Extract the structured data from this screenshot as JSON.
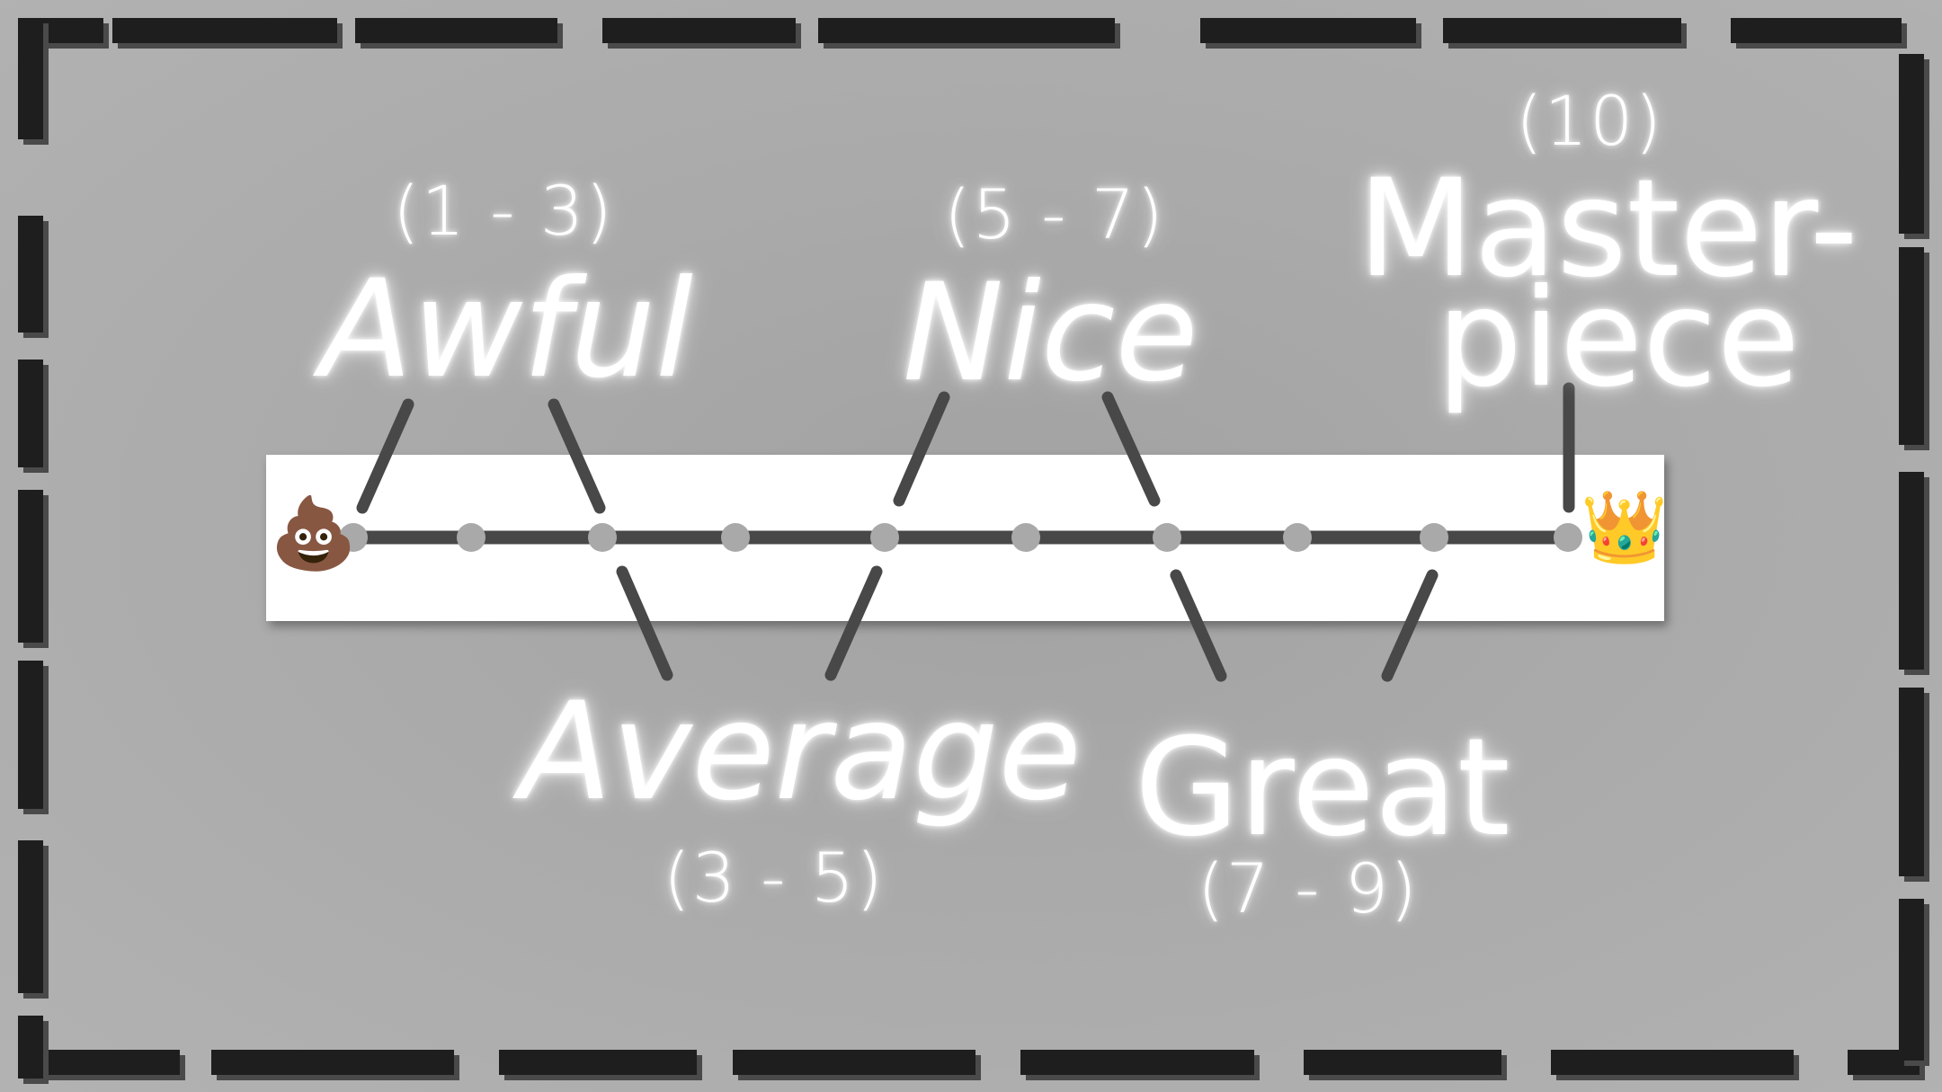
{
  "icons": {
    "start": "💩",
    "end": "👑",
    "start_name": "poop-icon",
    "end_name": "crown-icon"
  },
  "labels": {
    "awful": {
      "range": "(1 - 3)",
      "word": "Awful"
    },
    "average": {
      "range": "(3 - 5)",
      "word": "Average"
    },
    "nice": {
      "range": "(5 - 7)",
      "word": "Nice"
    },
    "great": {
      "range": "(7 - 9)",
      "word": "Great"
    },
    "masterpiece": {
      "range": "(10)",
      "word_line1": "Master-",
      "word_line2": "piece"
    }
  },
  "colors": {
    "line": "#484848",
    "dot": "#a9a9a9",
    "bar": "#ffffff",
    "frame": "#1e1e1e"
  }
}
